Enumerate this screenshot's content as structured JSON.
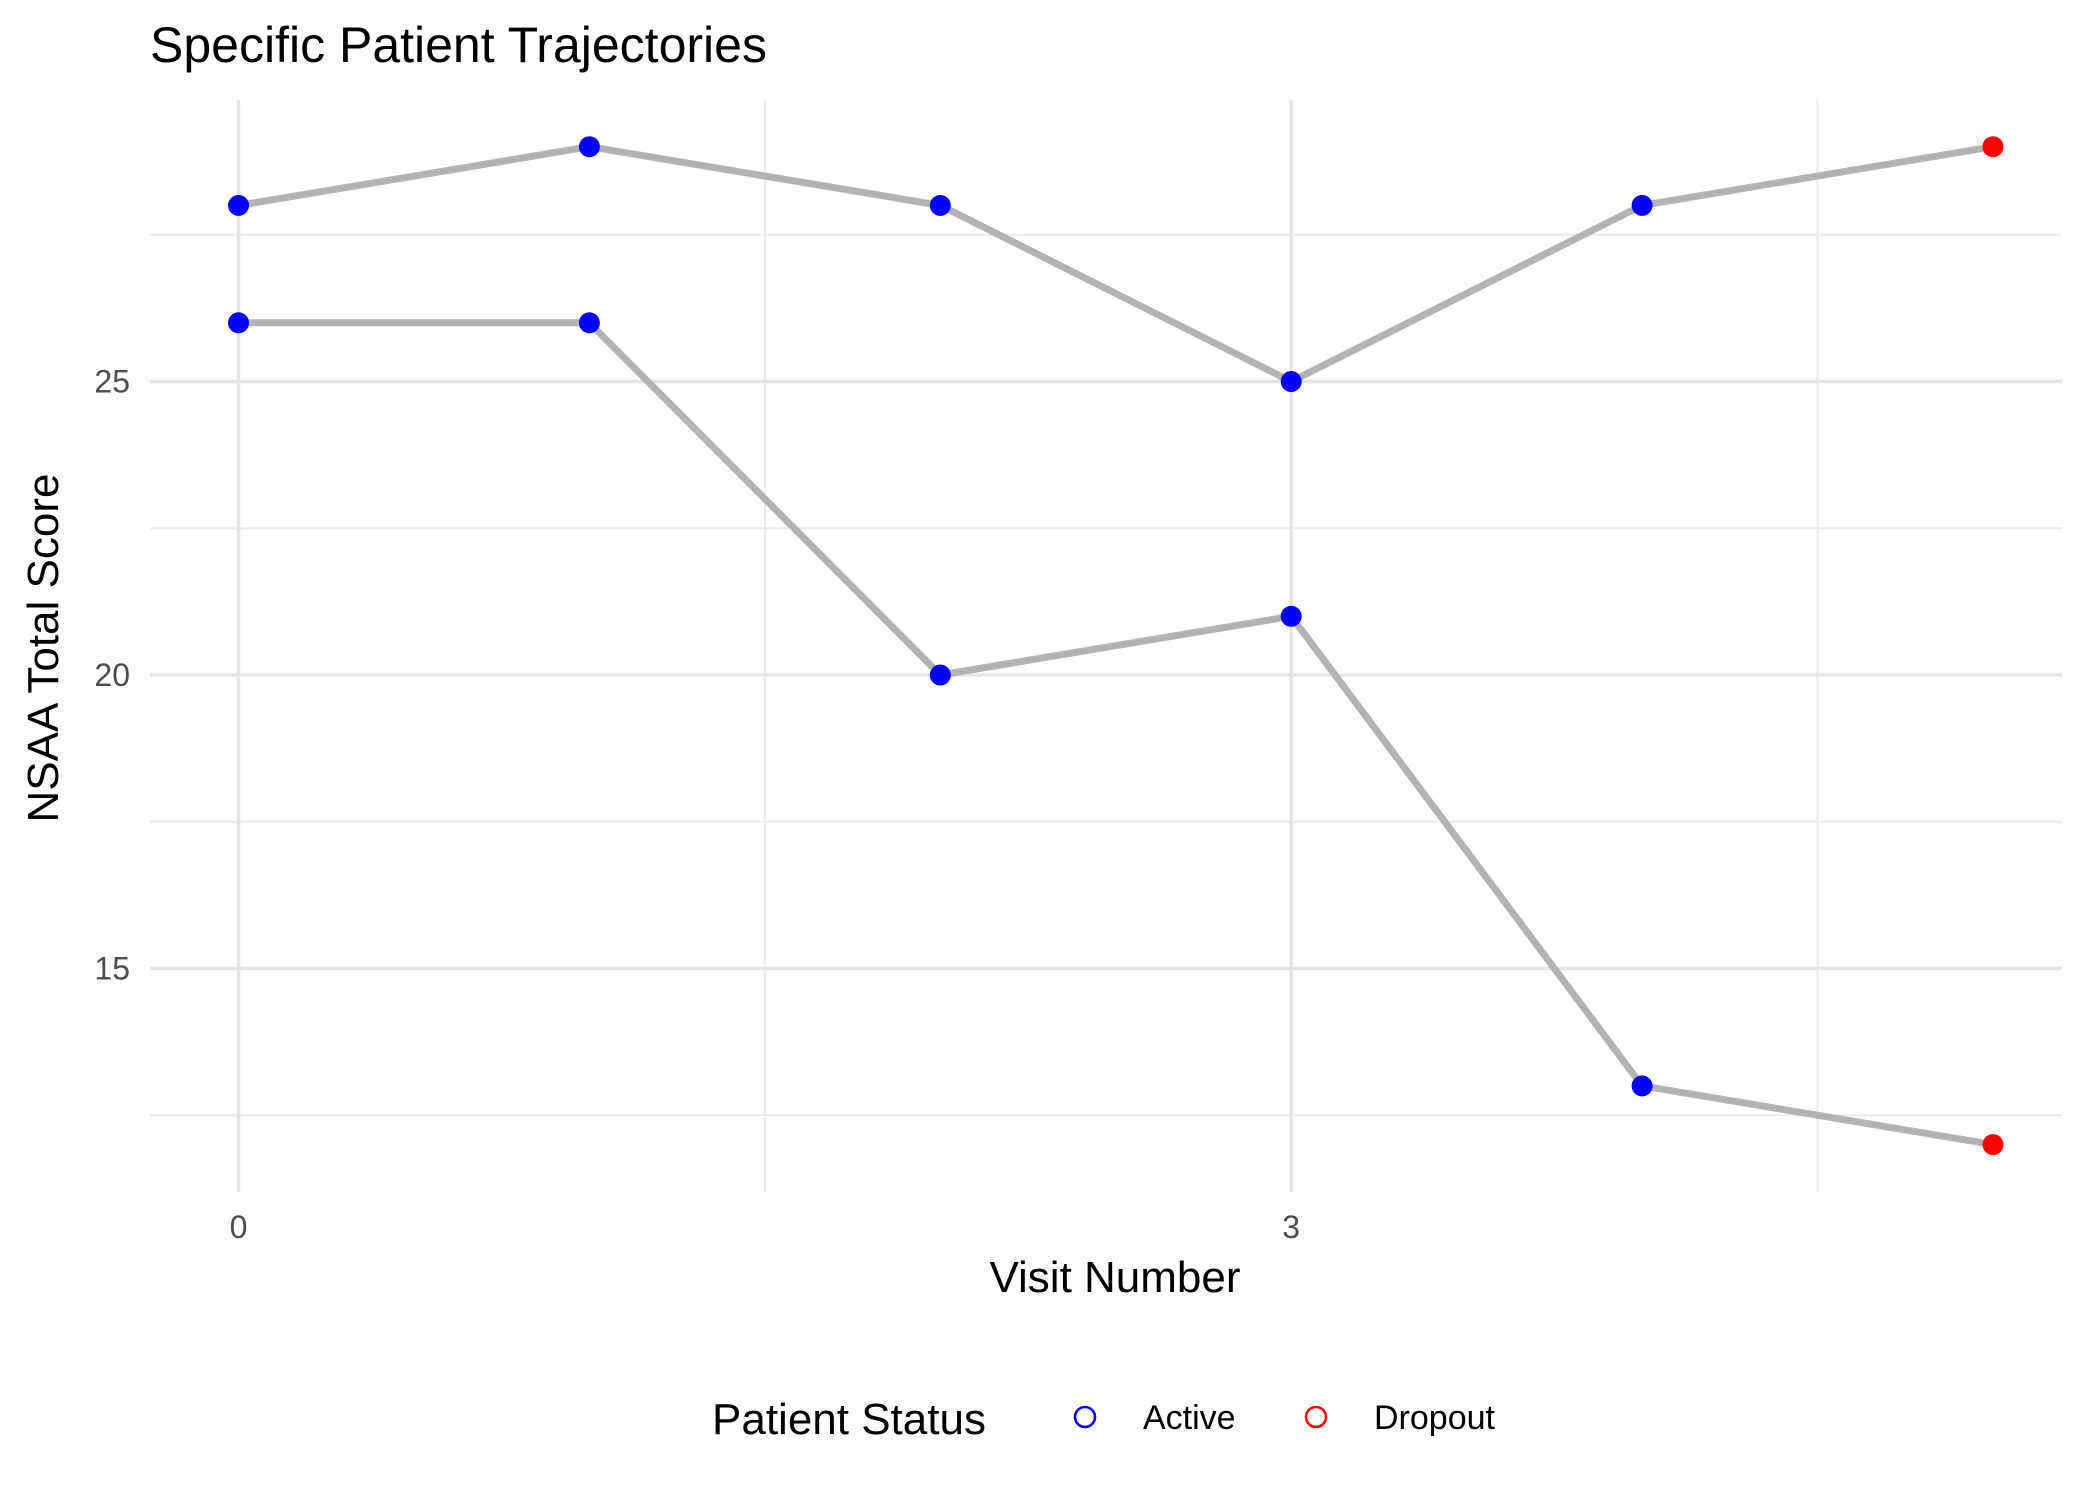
{
  "chart_data": {
    "type": "line",
    "title": "Specific Patient Trajectories",
    "xlabel": "Visit Number",
    "ylabel": "NSAA Total Score",
    "x_ticks": [
      0,
      3
    ],
    "y_ticks": [
      15,
      20,
      25
    ],
    "xlim": [
      -0.25,
      5.25
    ],
    "ylim": [
      11.6,
      29.8
    ],
    "grid": true,
    "legend_position": "bottom",
    "line_color": "#b3b3b3",
    "series": [
      {
        "x": [
          0,
          1,
          2,
          3,
          4,
          5
        ],
        "values": [
          28,
          29,
          28,
          25,
          28,
          29
        ],
        "status": [
          "Active",
          "Active",
          "Active",
          "Active",
          "Active",
          "Dropout"
        ]
      },
      {
        "x": [
          0,
          1,
          2,
          3,
          4,
          5
        ],
        "values": [
          26,
          26,
          20,
          21,
          13,
          12
        ],
        "status": [
          "Active",
          "Active",
          "Active",
          "Active",
          "Active",
          "Dropout"
        ]
      }
    ],
    "legend": {
      "title": "Patient Status",
      "entries": [
        {
          "label": "Active",
          "color": "#0000ff"
        },
        {
          "label": "Dropout",
          "color": "#ff0000"
        }
      ]
    }
  }
}
